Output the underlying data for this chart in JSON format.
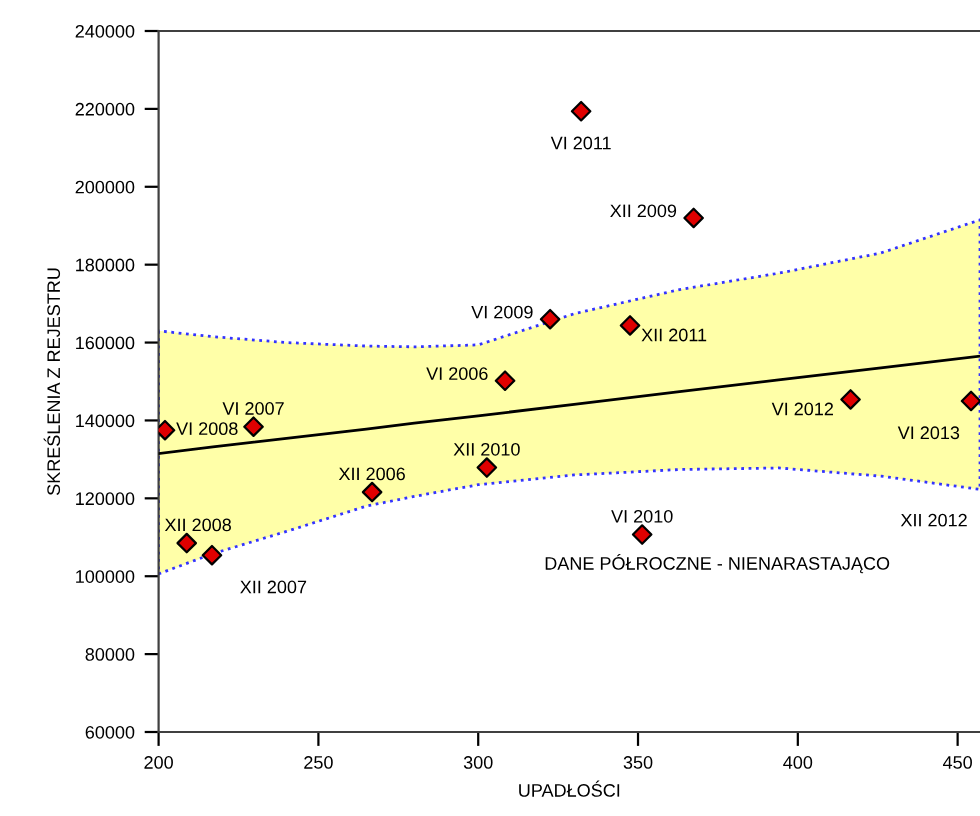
{
  "chart_data": {
    "type": "scatter",
    "xlabel": "UPADŁOŚCI",
    "ylabel": "SKREŚLENIA Z REJESTRU",
    "xlim": [
      200,
      457
    ],
    "ylim": [
      60000,
      240000
    ],
    "xticks": [
      200,
      250,
      300,
      350,
      400,
      450
    ],
    "yticks": [
      60000,
      80000,
      100000,
      120000,
      140000,
      160000,
      180000,
      200000,
      220000,
      240000
    ],
    "grid": false,
    "legend": false,
    "series": [
      {
        "type": "line",
        "color": "#000000",
        "line_style": "solid",
        "x": [
          200,
          217,
          240,
          265,
          280,
          300,
          330,
          363,
          394,
          426,
          457
        ],
        "values": [
          131500,
          133200,
          135400,
          137800,
          139300,
          141200,
          144100,
          147400,
          150400,
          153500,
          156500
        ],
        "lower": [
          100600,
          105800,
          111500,
          118000,
          120500,
          123500,
          126000,
          127400,
          127800,
          125700,
          122300
        ],
        "upper": [
          163000,
          161500,
          160000,
          159100,
          158900,
          159400,
          167400,
          173600,
          177800,
          183000,
          191500
        ]
      },
      {
        "color": "#e00000",
        "marker": "diamond",
        "x": [
          202,
          229.7,
          208.8,
          216.7,
          266.8,
          302.7,
          351.3,
          308.4,
          322.5,
          347.5,
          332.2,
          367.4,
          416.5,
          454.2
        ],
        "values": [
          137500,
          138400,
          108500,
          105400,
          121600,
          127900,
          110700,
          150200,
          166000,
          164400,
          219400,
          192000,
          145400,
          145000
        ]
      }
    ],
    "annotations": [
      {
        "text": "VI 2008",
        "x": 202,
        "y": 137500
      },
      {
        "text": "VI 2007",
        "x": 229.7,
        "y": 138400
      },
      {
        "text": "XII 2008",
        "x": 208.8,
        "y": 108500
      },
      {
        "text": "XII 2007",
        "x": 216.7,
        "y": 105400
      },
      {
        "text": "XII 2006",
        "x": 266.8,
        "y": 121600
      },
      {
        "text": "XII 2010",
        "x": 302.7,
        "y": 127900
      },
      {
        "text": "VI 2010",
        "x": 351.3,
        "y": 110700
      },
      {
        "text": "VI 2006",
        "x": 308.4,
        "y": 150200
      },
      {
        "text": "VI 2009",
        "x": 322.5,
        "y": 166000
      },
      {
        "text": "XII 2011",
        "x": 347.5,
        "y": 164400
      },
      {
        "text": "VI 2011",
        "x": 332.2,
        "y": 219400
      },
      {
        "text": "XII 2009",
        "x": 367.4,
        "y": 192000
      },
      {
        "text": "VI 2012",
        "x": 416.5,
        "y": 145400
      },
      {
        "text": "VI 2013",
        "x": 454.2,
        "y": 145000
      },
      "XII 2012",
      "DANE PÓŁROCZNE - NIENARASTAJĄCO"
    ]
  }
}
